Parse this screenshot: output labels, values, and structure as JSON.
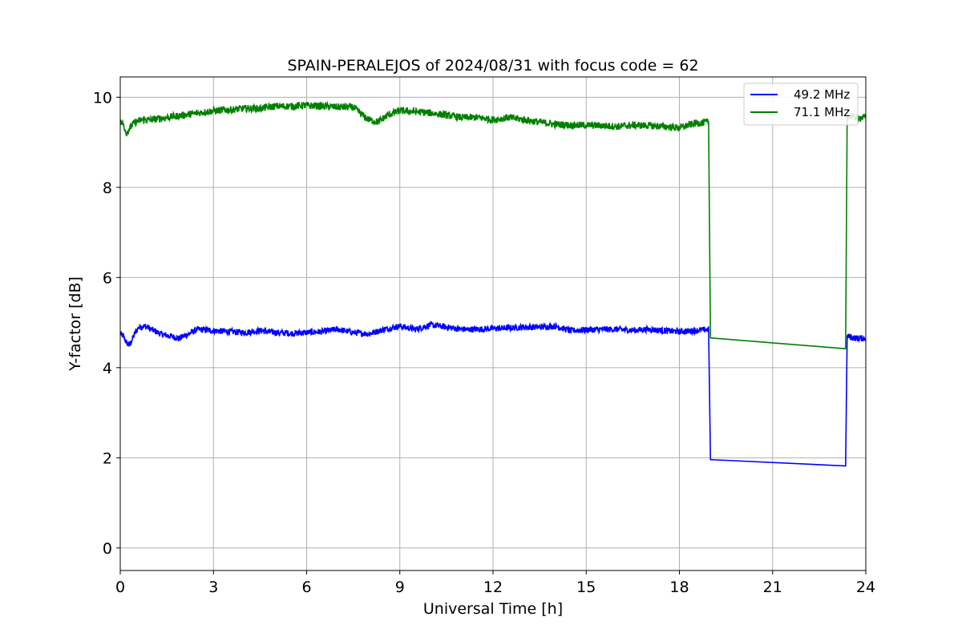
{
  "chart_data": {
    "type": "line",
    "title": "SPAIN-PERALEJOS of 2024/08/31 with focus code = 62",
    "xlabel": "Universal Time [h]",
    "ylabel": "Y-factor [dB]",
    "xlim": [
      0,
      24
    ],
    "ylim": [
      -0.5,
      10.45
    ],
    "xticks": [
      0,
      3,
      6,
      9,
      12,
      15,
      18,
      21,
      24
    ],
    "yticks": [
      0,
      2,
      4,
      6,
      8,
      10
    ],
    "grid": true,
    "legend_position": "top-right",
    "series": [
      {
        "name": "49.2 MHz",
        "color": "#0000ff",
        "noise_amplitude": 0.07,
        "x": [
          0,
          0.1,
          0.2,
          0.3,
          0.4,
          0.5,
          0.6,
          0.8,
          1.0,
          1.3,
          1.6,
          1.9,
          2.2,
          2.5,
          3,
          3.5,
          4,
          4.5,
          5,
          5.5,
          6,
          6.5,
          7,
          7.5,
          8,
          8.5,
          9,
          9.5,
          10,
          10.5,
          11,
          11.5,
          12,
          12.5,
          13,
          13.5,
          14,
          14.5,
          15,
          15.5,
          16,
          16.5,
          17,
          17.5,
          18,
          18.5,
          18.95,
          19.0,
          23.35,
          23.4,
          23.5,
          23.7,
          24
        ],
        "y": [
          4.75,
          4.7,
          4.55,
          4.5,
          4.65,
          4.8,
          4.9,
          4.92,
          4.85,
          4.75,
          4.7,
          4.65,
          4.75,
          4.85,
          4.82,
          4.8,
          4.78,
          4.82,
          4.78,
          4.76,
          4.78,
          4.8,
          4.85,
          4.78,
          4.75,
          4.85,
          4.92,
          4.85,
          4.95,
          4.9,
          4.85,
          4.85,
          4.87,
          4.88,
          4.9,
          4.9,
          4.92,
          4.82,
          4.84,
          4.85,
          4.85,
          4.83,
          4.85,
          4.82,
          4.8,
          4.82,
          4.85,
          1.96,
          1.82,
          4.7,
          4.68,
          4.65,
          4.65
        ]
      },
      {
        "name": "71.1 MHz",
        "color": "#008000",
        "noise_amplitude": 0.08,
        "x": [
          0,
          0.1,
          0.2,
          0.3,
          0.4,
          0.5,
          0.7,
          1.0,
          1.5,
          2.0,
          2.5,
          3,
          3.5,
          4,
          4.5,
          5,
          5.5,
          6,
          6.5,
          7,
          7.5,
          7.8,
          8.0,
          8.3,
          8.6,
          9,
          9.5,
          10,
          10.5,
          11,
          11.5,
          12,
          12.5,
          13,
          13.5,
          14,
          14.5,
          15,
          15.5,
          16,
          16.5,
          17,
          17.5,
          18,
          18.5,
          18.95,
          19.0,
          23.35,
          23.4,
          23.5,
          23.7,
          24
        ],
        "y": [
          9.45,
          9.4,
          9.2,
          9.3,
          9.4,
          9.45,
          9.5,
          9.5,
          9.55,
          9.6,
          9.65,
          9.7,
          9.72,
          9.75,
          9.75,
          9.8,
          9.8,
          9.82,
          9.8,
          9.78,
          9.78,
          9.6,
          9.5,
          9.45,
          9.6,
          9.7,
          9.68,
          9.65,
          9.6,
          9.55,
          9.55,
          9.5,
          9.55,
          9.5,
          9.45,
          9.4,
          9.38,
          9.38,
          9.37,
          9.35,
          9.38,
          9.37,
          9.35,
          9.32,
          9.42,
          9.45,
          4.66,
          4.42,
          9.55,
          9.58,
          9.55,
          9.55
        ]
      }
    ]
  }
}
